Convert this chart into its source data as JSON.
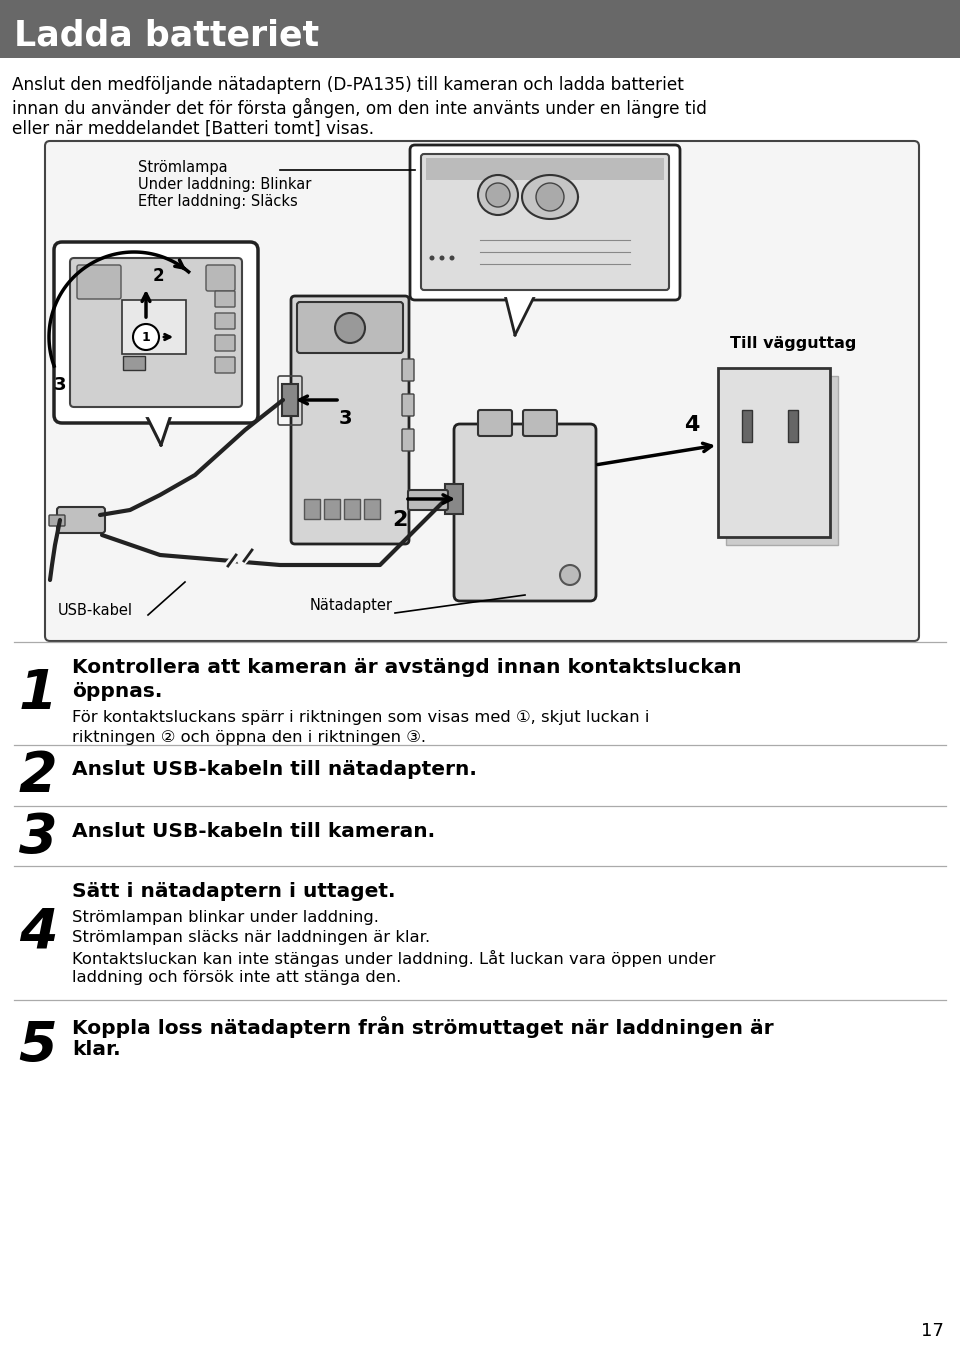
{
  "title": "Ladda batteriet",
  "title_bg": "#686868",
  "title_fg": "#ffffff",
  "page_bg": "#ffffff",
  "body_line1": "Anslut den medföljande nätadaptern (D-PA135) till kameran och ladda batteriet",
  "body_line2": "innan du använder det för första gången, om den inte använts under en längre tid",
  "body_line3": "eller när meddelandet [Batteri tomt] visas.",
  "lbl_stromlampa": "Strömlampa",
  "lbl_under": "Under laddning: Blinkar",
  "lbl_efter": "Efter laddning: Släcks",
  "lbl_till_vagg": "Till vägguttag",
  "lbl_natadapter": "Nätadapter",
  "lbl_usb": "USB-kabel",
  "step1_bold": "Kontrollera att kameran är avstängd innan kontaktsluckan",
  "step1_bold2": "öppnas.",
  "step1_normal": "För kontaktsluckans spärr i riktningen som visas med ①, skjut luckan i",
  "step1_normal2": "riktningen ② och öppna den i riktningen ③.",
  "step2_bold": "Anslut USB-kabeln till nätadaptern.",
  "step3_bold": "Anslut USB-kabeln till kameran.",
  "step4_bold": "Sätt i nätadaptern i uttaget.",
  "step4_n1": "Strömlampan blinkar under laddning.",
  "step4_n2": "Strömlampan släcks när laddningen är klar.",
  "step4_n3": "Kontaktsluckan kan inte stängas under laddning. Låt luckan vara öppen under",
  "step4_n4": "laddning och försök inte att stänga den.",
  "step5_bold": "Koppla loss nätadaptern från strömuttaget när laddningen är",
  "step5_bold2": "klar.",
  "page_number": "17",
  "sep_color": "#aaaaaa",
  "text_color": "#000000",
  "diag_border": "#444444",
  "diag_bg": "#f5f5f5"
}
